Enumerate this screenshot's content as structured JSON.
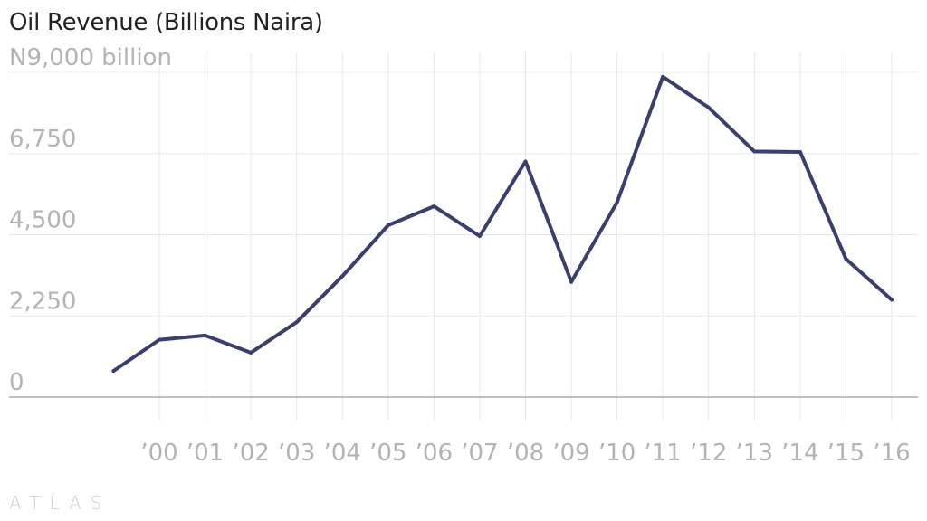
{
  "header": {
    "title": "Oil Revenue (Billions Naira)"
  },
  "brand": {
    "name": "ATLAS"
  },
  "colors": {
    "line": "#3b3f6e",
    "grid": "#e8e8e8",
    "axis": "#9a9a9a",
    "tick_text": "#b3b3b3",
    "title": "#222222"
  },
  "chart_data": {
    "type": "line",
    "title": "Oil Revenue (Billions Naira)",
    "xlabel": "",
    "ylabel": "",
    "x": [
      1999,
      2000,
      2001,
      2002,
      2003,
      2004,
      2005,
      2006,
      2007,
      2008,
      2009,
      2010,
      2011,
      2012,
      2013,
      2014,
      2015,
      2016
    ],
    "values": [
      725,
      1590,
      1707,
      1231,
      2075,
      3354,
      4763,
      5287,
      4463,
      6530,
      3191,
      5397,
      8879,
      8026,
      6809,
      6794,
      3831,
      2694
    ],
    "x_tick_labels": [
      "’00",
      "’01",
      "’02",
      "’03",
      "’04",
      "’05",
      "’06",
      "’07",
      "’08",
      "’09",
      "’10",
      "’11",
      "’12",
      "’13",
      "’14",
      "’15",
      "’16"
    ],
    "x_tick_values": [
      2000,
      2001,
      2002,
      2003,
      2004,
      2005,
      2006,
      2007,
      2008,
      2009,
      2010,
      2011,
      2012,
      2013,
      2014,
      2015,
      2016
    ],
    "y_ticks": [
      0,
      2250,
      4500,
      6750,
      9000
    ],
    "y_tick_labels": [
      "0",
      "2,250",
      "4,500",
      "6,750",
      "N9,000 billion"
    ],
    "ylim": [
      0,
      9000
    ],
    "xlim": [
      1999,
      2016
    ],
    "grid": true,
    "legend": "none"
  }
}
